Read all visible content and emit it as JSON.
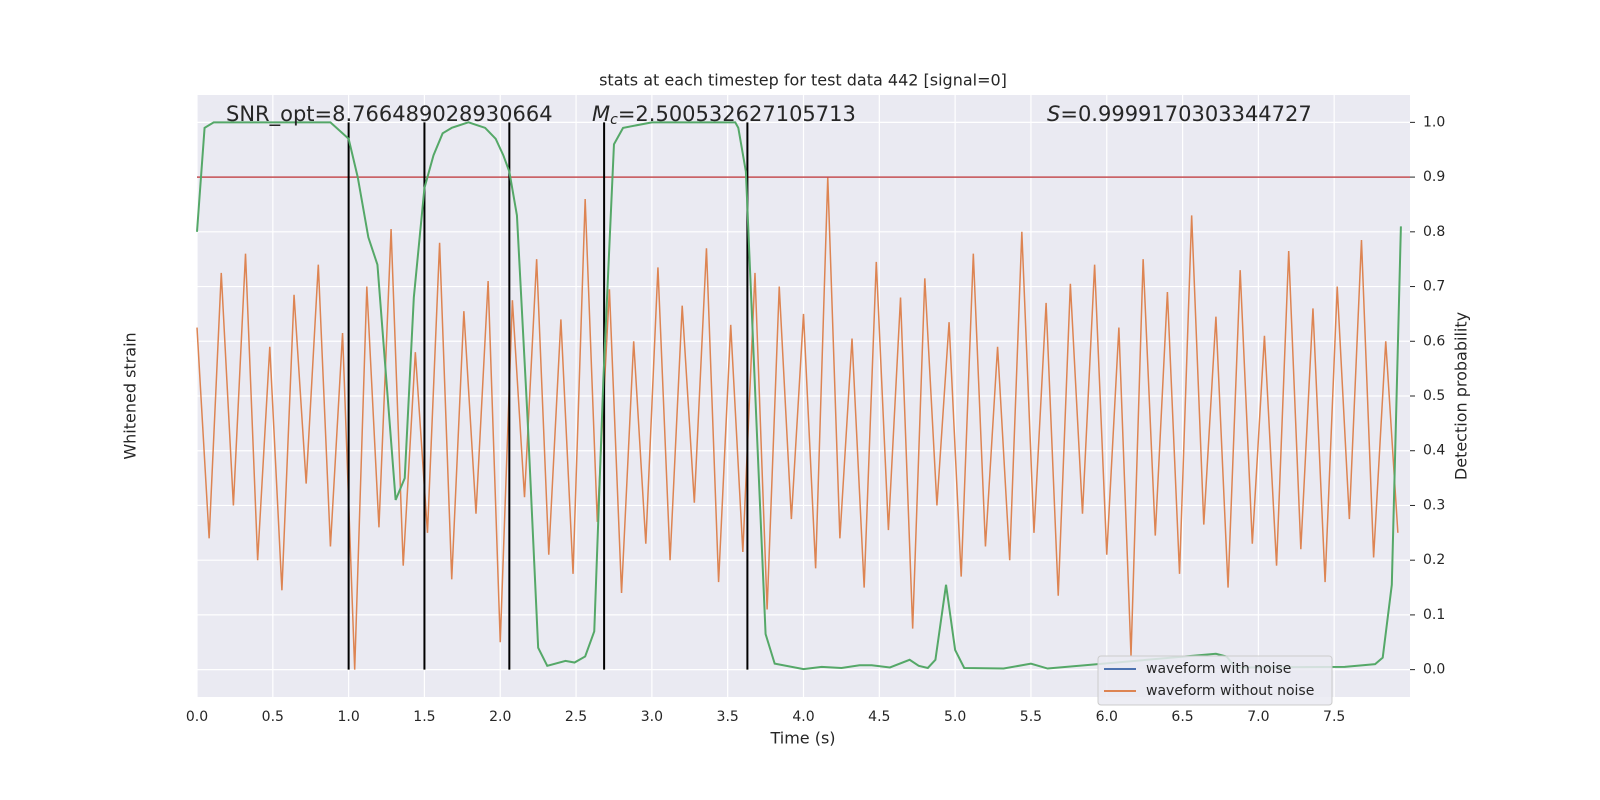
{
  "chart_data": {
    "type": "line",
    "title": "stats at each timestep for test data 442 [signal=0]",
    "xlabel": "Time (s)",
    "ylabel": "Whitened strain",
    "y2label": "Detection probability",
    "annotations": {
      "snr": "SNR_opt=8.766489028930664",
      "mc": {
        "symbol": "M",
        "subscript": "c",
        "text": "=2.500532627105713"
      },
      "s": {
        "symbol": "S",
        "text": "=0.9999170303344727"
      }
    },
    "xlim": [
      0,
      8.0
    ],
    "xticks": [
      {
        "value": 0,
        "label": "0.0"
      },
      0.5,
      {
        "value": 1,
        "label": "1.0"
      },
      1.5,
      {
        "value": 2,
        "label": "2.0"
      },
      2.5,
      {
        "value": 3,
        "label": "3.0"
      },
      3.5,
      {
        "value": 4,
        "label": "4.0"
      },
      4.5,
      {
        "value": 5,
        "label": "5.0"
      },
      5.5,
      {
        "value": 6,
        "label": "6.0"
      },
      6.5,
      {
        "value": 7,
        "label": "7.0"
      },
      7.5
    ],
    "ylim": [
      -1,
      1.2
    ],
    "y2lim": [
      -0.05,
      1.05
    ],
    "y2ticks": [
      {
        "value": 0,
        "label": "0.0"
      },
      0.1,
      0.2,
      0.3,
      0.4,
      0.5,
      0.6,
      0.7,
      0.8,
      0.9,
      {
        "value": 1,
        "label": "1.0"
      }
    ],
    "grid": true,
    "legend": "lower right",
    "x": [
      0,
      0.08,
      0.16,
      0.24,
      0.32,
      0.4,
      0.48,
      0.56,
      0.64,
      0.72,
      0.8,
      0.88,
      0.96,
      1.04,
      1.12,
      1.2,
      1.28,
      1.36,
      1.44,
      1.52,
      1.6,
      1.68,
      1.76,
      1.84,
      1.92,
      2,
      2.08,
      2.16,
      2.24,
      2.32,
      2.4,
      2.48,
      2.56,
      2.64,
      2.72,
      2.8,
      2.88,
      2.96,
      3.04,
      3.12,
      3.2,
      3.28,
      3.36,
      3.44,
      3.52,
      3.6,
      3.68,
      3.76,
      3.84,
      3.92,
      4,
      4.08,
      4.16,
      4.24,
      4.32,
      4.4,
      4.48,
      4.56,
      4.64,
      4.72,
      4.8,
      4.88,
      4.96,
      5.04,
      5.12,
      5.2,
      5.28,
      5.36,
      5.44,
      5.52,
      5.6,
      5.68,
      5.76,
      5.84,
      5.92,
      6,
      6.08,
      6.16,
      6.24,
      6.32,
      6.4,
      6.48,
      6.56,
      6.64,
      6.72,
      6.8,
      6.88,
      6.96,
      7.04,
      7.12,
      7.2,
      7.28,
      7.36,
      7.44,
      7.52,
      7.6,
      7.68,
      7.76,
      7.84,
      7.92
    ],
    "series": [
      {
        "name": "waveform with noise",
        "color": "#4c72b0"
      },
      {
        "name": "waveform without noise",
        "color": "#dd8452",
        "values": [
          0.35,
          -0.42,
          0.55,
          -0.3,
          0.62,
          -0.5,
          0.28,
          -0.61,
          0.47,
          -0.22,
          0.58,
          -0.45,
          0.33,
          -0.9,
          0.5,
          -0.38,
          0.71,
          -0.52,
          0.26,
          -0.4,
          0.66,
          -0.57,
          0.41,
          -0.33,
          0.52,
          -0.8,
          0.45,
          -0.27,
          0.6,
          -0.48,
          0.38,
          -0.55,
          0.82,
          -0.36,
          0.49,
          -0.62,
          0.3,
          -0.44,
          0.57,
          -0.5,
          0.43,
          -0.29,
          0.64,
          -0.58,
          0.36,
          -0.47,
          0.55,
          -0.68,
          0.5,
          -0.35,
          0.4,
          -0.53,
          0.9,
          -0.42,
          0.31,
          -0.6,
          0.59,
          -0.39,
          0.46,
          -0.75,
          0.53,
          -0.3,
          0.37,
          -0.56,
          0.62,
          -0.45,
          0.28,
          -0.5,
          0.7,
          -0.4,
          0.44,
          -0.63,
          0.51,
          -0.33,
          0.58,
          -0.48,
          0.35,
          -0.85,
          0.6,
          -0.41,
          0.48,
          -0.55,
          0.76,
          -0.37,
          0.39,
          -0.6,
          0.56,
          -0.44,
          0.32,
          -0.52,
          0.63,
          -0.46,
          0.42,
          -0.58,
          0.5,
          -0.35,
          0.67,
          -0.49,
          0.3,
          -0.4
        ]
      }
    ],
    "probability": {
      "axis": "y2",
      "color": "#55a868",
      "x": [
        0,
        0.05,
        0.11,
        0.88,
        1.0,
        1.06,
        1.13,
        1.19,
        1.31,
        1.37,
        1.43,
        1.5,
        1.56,
        1.62,
        1.68,
        1.79,
        1.9,
        1.97,
        2.02,
        2.06,
        2.11,
        2.18,
        2.25,
        2.31,
        2.43,
        2.49,
        2.56,
        2.62,
        2.68,
        2.75,
        2.81,
        3.0,
        3.55,
        3.57,
        3.62,
        3.69,
        3.75,
        3.81,
        4.0,
        4.12,
        4.25,
        4.37,
        4.45,
        4.57,
        4.7,
        4.76,
        4.82,
        4.87,
        4.94,
        5.0,
        5.06,
        5.32,
        5.5,
        5.61,
        6.72,
        6.79,
        6.85,
        7.57,
        7.77,
        7.82,
        7.88,
        7.94
      ],
      "values": [
        0.8,
        0.99,
        1.0,
        1.0,
        0.97,
        0.9,
        0.79,
        0.74,
        0.31,
        0.35,
        0.68,
        0.88,
        0.94,
        0.98,
        0.99,
        1.0,
        0.99,
        0.97,
        0.94,
        0.91,
        0.83,
        0.46,
        0.04,
        0.007,
        0.016,
        0.013,
        0.024,
        0.07,
        0.53,
        0.96,
        0.99,
        1.0,
        1.0,
        0.99,
        0.91,
        0.45,
        0.065,
        0.011,
        0.001,
        0.005,
        0.003,
        0.008,
        0.008,
        0.004,
        0.018,
        0.007,
        0.003,
        0.018,
        0.155,
        0.036,
        0.003,
        0.002,
        0.011,
        0.002,
        0.029,
        0.024,
        0.004,
        0.005,
        0.01,
        0.022,
        0.155,
        0.81
      ]
    },
    "threshold": {
      "axis": "y2",
      "value": 0.9,
      "color": "#c44e52"
    },
    "vlines": {
      "axis": "y2",
      "x": [
        1.0,
        1.5,
        2.06,
        2.685,
        3.63
      ],
      "range": [
        0,
        1
      ],
      "color": "#000000"
    }
  }
}
